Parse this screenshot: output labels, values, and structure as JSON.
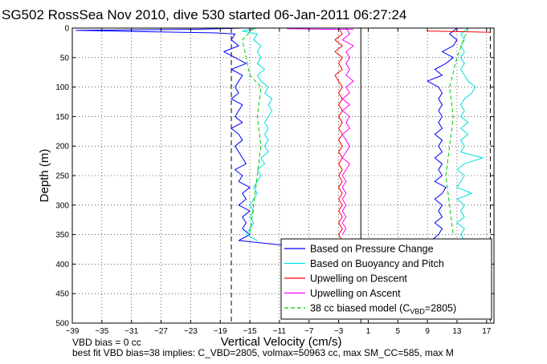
{
  "chart_data": {
    "type": "line",
    "title": "SG502 RossSea Nov 2010, dive 530 started 06-Jan-2011 06:27:24",
    "xlabel": "Vertical Velocity (cm/s)",
    "ylabel": "Depth (m)",
    "xlim": [
      -39,
      18
    ],
    "ylim": [
      0,
      500
    ],
    "y_reversed": true,
    "grid": true,
    "xticks": [
      -39,
      -35,
      -31,
      -27,
      -23,
      -19,
      -15,
      -11,
      -7,
      -3,
      1,
      5,
      9,
      13,
      17
    ],
    "yticks": [
      0,
      50,
      100,
      150,
      200,
      250,
      300,
      350,
      400,
      450,
      500
    ],
    "reference_lines": [
      {
        "x": -17.5,
        "style": "dashed"
      },
      {
        "x": 0,
        "style": "solid"
      },
      {
        "x": 17.5,
        "style": "dashed"
      }
    ],
    "legend_position": "bottom-right",
    "series": [
      {
        "name": "Based on Pressure Change",
        "color": "#0000ff",
        "style": "solid",
        "segments": [
          [
            [
              -16.0,
              0
            ],
            [
              -22.0,
              2
            ],
            [
              -31.0,
              3
            ],
            [
              -38.5,
              4
            ],
            [
              -30.0,
              6
            ],
            [
              -20.0,
              8
            ],
            [
              -17.0,
              10
            ],
            [
              -17.5,
              20
            ],
            [
              -16.5,
              30
            ],
            [
              -18.5,
              40
            ],
            [
              -17.0,
              50
            ],
            [
              -15.5,
              60
            ],
            [
              -17.5,
              70
            ],
            [
              -16.0,
              80
            ],
            [
              -16.5,
              90
            ],
            [
              -17.0,
              100
            ],
            [
              -16.5,
              110
            ],
            [
              -17.5,
              120
            ],
            [
              -16.0,
              130
            ],
            [
              -16.5,
              140
            ],
            [
              -17.0,
              150
            ],
            [
              -16.0,
              160
            ],
            [
              -17.5,
              170
            ],
            [
              -16.5,
              180
            ],
            [
              -16.0,
              190
            ],
            [
              -17.0,
              200
            ],
            [
              -16.5,
              210
            ],
            [
              -16.0,
              220
            ],
            [
              -15.5,
              230
            ],
            [
              -17.0,
              240
            ],
            [
              -16.0,
              250
            ],
            [
              -16.5,
              260
            ],
            [
              -15.0,
              270
            ],
            [
              -16.0,
              280
            ],
            [
              -15.5,
              290
            ],
            [
              -16.5,
              300
            ],
            [
              -15.0,
              310
            ],
            [
              -16.0,
              320
            ],
            [
              -15.5,
              330
            ],
            [
              -16.0,
              340
            ],
            [
              -15.0,
              350
            ],
            [
              -16.5,
              360
            ],
            [
              -12.0,
              366
            ],
            [
              -9.0,
              370
            ]
          ],
          [
            [
              9.0,
              370
            ],
            [
              9.5,
              360
            ],
            [
              10.5,
              350
            ],
            [
              11.0,
              340
            ],
            [
              10.0,
              330
            ],
            [
              11.0,
              320
            ],
            [
              10.5,
              310
            ],
            [
              11.0,
              300
            ],
            [
              10.0,
              290
            ],
            [
              11.0,
              280
            ],
            [
              11.5,
              270
            ],
            [
              10.0,
              260
            ],
            [
              11.0,
              250
            ],
            [
              10.5,
              240
            ],
            [
              11.0,
              230
            ],
            [
              10.0,
              220
            ],
            [
              11.0,
              210
            ],
            [
              10.5,
              200
            ],
            [
              11.0,
              190
            ],
            [
              10.0,
              180
            ],
            [
              11.0,
              170
            ],
            [
              10.5,
              160
            ],
            [
              11.0,
              150
            ],
            [
              10.5,
              140
            ],
            [
              11.0,
              130
            ],
            [
              10.5,
              120
            ],
            [
              11.0,
              110
            ],
            [
              10.5,
              100
            ],
            [
              9.0,
              90
            ],
            [
              11.0,
              80
            ],
            [
              10.0,
              70
            ],
            [
              11.5,
              60
            ],
            [
              12.5,
              50
            ],
            [
              11.0,
              40
            ],
            [
              12.5,
              30
            ],
            [
              13.0,
              20
            ],
            [
              12.0,
              10
            ],
            [
              13.0,
              0
            ]
          ]
        ]
      },
      {
        "name": "Based on Buoyancy and Pitch",
        "color": "#00e0e0",
        "style": "solid",
        "segments": [
          [
            [
              -14.0,
              0
            ],
            [
              -16.0,
              5
            ],
            [
              -14.0,
              10
            ],
            [
              -14.5,
              20
            ],
            [
              -13.5,
              30
            ],
            [
              -14.0,
              40
            ],
            [
              -13.5,
              50
            ],
            [
              -14.0,
              60
            ],
            [
              -13.0,
              70
            ],
            [
              -14.0,
              80
            ],
            [
              -13.5,
              90
            ],
            [
              -12.5,
              100
            ],
            [
              -13.0,
              110
            ],
            [
              -12.0,
              120
            ],
            [
              -12.5,
              130
            ],
            [
              -12.0,
              140
            ],
            [
              -12.5,
              150
            ],
            [
              -13.0,
              160
            ],
            [
              -12.5,
              170
            ],
            [
              -13.0,
              180
            ],
            [
              -12.5,
              190
            ],
            [
              -13.0,
              200
            ],
            [
              -12.5,
              210
            ],
            [
              -13.5,
              220
            ],
            [
              -13.0,
              230
            ],
            [
              -14.0,
              240
            ],
            [
              -13.5,
              250
            ],
            [
              -14.0,
              260
            ],
            [
              -14.5,
              270
            ],
            [
              -14.0,
              280
            ],
            [
              -14.5,
              290
            ],
            [
              -15.0,
              300
            ],
            [
              -14.5,
              310
            ],
            [
              -15.0,
              320
            ],
            [
              -14.5,
              330
            ],
            [
              -15.0,
              340
            ],
            [
              -15.5,
              350
            ],
            [
              -14.0,
              360
            ]
          ],
          [
            [
              14.0,
              360
            ],
            [
              13.5,
              350
            ],
            [
              14.0,
              340
            ],
            [
              13.0,
              330
            ],
            [
              14.0,
              320
            ],
            [
              13.5,
              310
            ],
            [
              14.0,
              300
            ],
            [
              13.0,
              290
            ],
            [
              15.0,
              280
            ],
            [
              13.0,
              270
            ],
            [
              13.5,
              260
            ],
            [
              14.0,
              250
            ],
            [
              13.0,
              240
            ],
            [
              14.0,
              230
            ],
            [
              16.5,
              220
            ],
            [
              13.5,
              210
            ],
            [
              14.0,
              200
            ],
            [
              13.5,
              190
            ],
            [
              14.5,
              180
            ],
            [
              13.5,
              170
            ],
            [
              14.5,
              160
            ],
            [
              13.5,
              150
            ],
            [
              14.0,
              140
            ],
            [
              13.5,
              130
            ],
            [
              14.0,
              120
            ],
            [
              15.0,
              110
            ],
            [
              15.5,
              100
            ],
            [
              14.5,
              90
            ],
            [
              14.0,
              80
            ],
            [
              13.5,
              70
            ],
            [
              14.0,
              60
            ],
            [
              13.5,
              50
            ],
            [
              14.0,
              40
            ],
            [
              13.5,
              30
            ],
            [
              14.0,
              20
            ],
            [
              13.5,
              10
            ],
            [
              14.5,
              0
            ]
          ]
        ]
      },
      {
        "name": "Upwelling on Descent",
        "color": "#ff0000",
        "style": "solid",
        "segments": [
          [
            [
              -3.0,
              0
            ],
            [
              -2.5,
              10
            ],
            [
              -3.5,
              20
            ],
            [
              -2.5,
              30
            ],
            [
              -3.5,
              40
            ],
            [
              -2.5,
              50
            ],
            [
              -3.0,
              60
            ],
            [
              -2.5,
              70
            ],
            [
              -3.5,
              80
            ],
            [
              -3.0,
              90
            ],
            [
              -2.5,
              100
            ],
            [
              -3.0,
              110
            ],
            [
              -2.5,
              120
            ],
            [
              -3.0,
              130
            ],
            [
              -2.5,
              140
            ],
            [
              -3.0,
              150
            ],
            [
              -2.5,
              160
            ],
            [
              -3.0,
              170
            ],
            [
              -2.5,
              180
            ],
            [
              -3.0,
              190
            ],
            [
              -2.5,
              200
            ],
            [
              -3.0,
              210
            ],
            [
              -2.5,
              220
            ],
            [
              -3.0,
              230
            ],
            [
              -2.5,
              240
            ],
            [
              -3.0,
              250
            ],
            [
              -2.5,
              260
            ],
            [
              -3.0,
              270
            ],
            [
              -2.5,
              280
            ],
            [
              -3.0,
              290
            ],
            [
              -2.5,
              300
            ],
            [
              -3.0,
              310
            ],
            [
              -2.5,
              320
            ],
            [
              -3.0,
              330
            ],
            [
              -2.5,
              340
            ],
            [
              -3.0,
              350
            ],
            [
              -2.5,
              360
            ]
          ],
          [
            [
              9.0,
              5
            ],
            [
              13.0,
              6
            ],
            [
              17.5,
              7
            ]
          ]
        ]
      },
      {
        "name": "Upwelling on Ascent",
        "color": "#ff00ff",
        "style": "solid",
        "segments": [
          [
            [
              -2.0,
              0
            ],
            [
              -1.5,
              10
            ],
            [
              -2.5,
              20
            ],
            [
              -1.0,
              30
            ],
            [
              -2.0,
              40
            ],
            [
              -1.5,
              50
            ],
            [
              -2.0,
              60
            ],
            [
              -1.5,
              70
            ],
            [
              -2.0,
              80
            ],
            [
              -1.0,
              90
            ],
            [
              -2.0,
              100
            ],
            [
              -1.5,
              110
            ],
            [
              -2.5,
              120
            ],
            [
              -1.5,
              130
            ],
            [
              -2.5,
              140
            ],
            [
              -1.5,
              150
            ],
            [
              -2.0,
              160
            ],
            [
              -1.5,
              170
            ],
            [
              -2.5,
              180
            ],
            [
              -2.0,
              190
            ],
            [
              -1.5,
              200
            ],
            [
              -2.0,
              210
            ],
            [
              -2.5,
              220
            ],
            [
              -1.5,
              230
            ],
            [
              -2.0,
              240
            ],
            [
              -2.5,
              250
            ],
            [
              -2.0,
              260
            ],
            [
              -2.5,
              270
            ],
            [
              -2.0,
              280
            ],
            [
              -2.5,
              290
            ],
            [
              -2.0,
              300
            ],
            [
              -2.5,
              310
            ],
            [
              -2.0,
              320
            ],
            [
              -2.5,
              330
            ],
            [
              -2.0,
              340
            ],
            [
              -2.5,
              350
            ]
          ],
          [
            [
              -1.0,
              2
            ],
            [
              -5.0,
              2
            ],
            [
              -10.0,
              1
            ]
          ]
        ]
      },
      {
        "name": "38 cc biased model",
        "color": "#00cc00",
        "style": "dashed",
        "segments": [
          [
            [
              -14.5,
              0
            ],
            [
              -16.0,
              20
            ],
            [
              -15.5,
              50
            ],
            [
              -15.0,
              80
            ],
            [
              -13.5,
              100
            ],
            [
              -14.0,
              150
            ],
            [
              -13.5,
              200
            ],
            [
              -14.0,
              250
            ],
            [
              -14.5,
              300
            ],
            [
              -15.0,
              350
            ]
          ],
          [
            [
              14.5,
              0
            ],
            [
              13.0,
              50
            ],
            [
              12.0,
              100
            ],
            [
              12.5,
              150
            ],
            [
              12.0,
              200
            ],
            [
              11.5,
              250
            ],
            [
              12.0,
              300
            ],
            [
              12.5,
              350
            ]
          ]
        ]
      }
    ],
    "legend": {
      "entries": [
        "Based on Pressure Change",
        "Based on Buoyancy and Pitch",
        "Upwelling on Descent",
        "Upwelling on Ascent",
        "38 cc biased model (C"
      ],
      "last_sub": "VBD",
      "last_tail": "=2805)"
    }
  },
  "footer": {
    "line1": "VBD bias = 0 cc",
    "line2": "best fit VBD bias=38 implies: C_VBD=2805, volmax=50963 cc, max SM_CC=585, max M"
  }
}
